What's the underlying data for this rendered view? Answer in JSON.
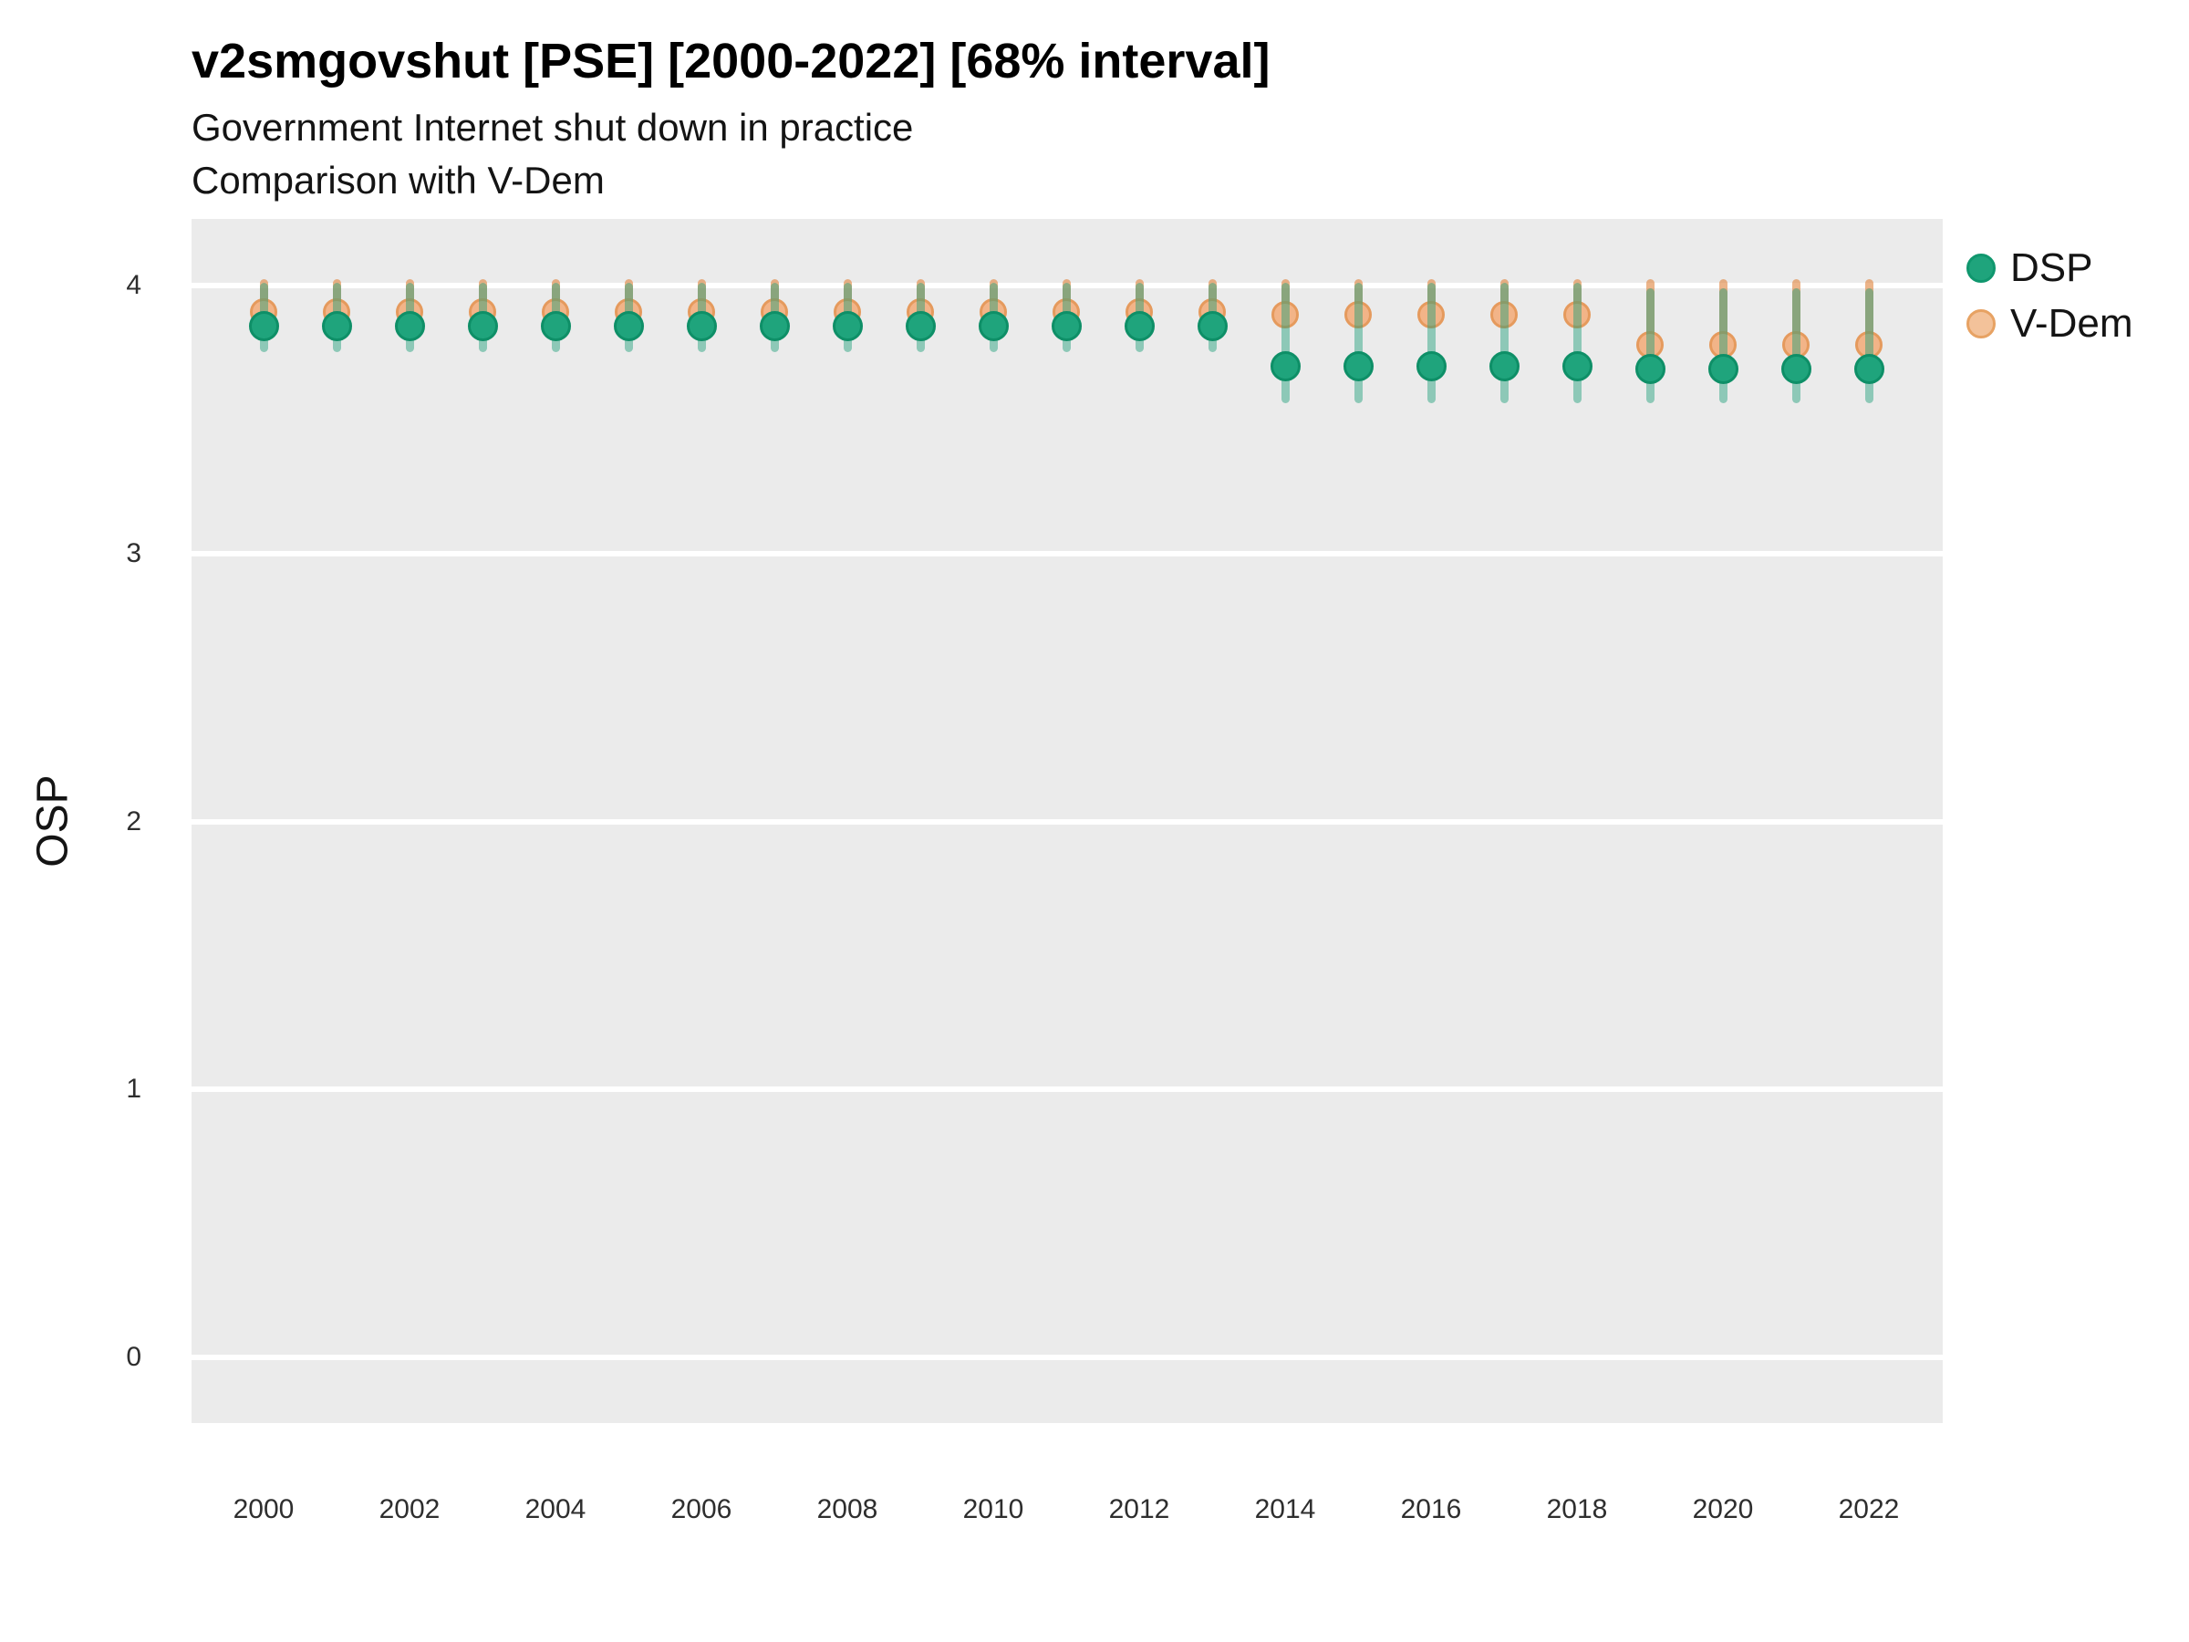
{
  "header": {
    "title": "v2smgovshut [PSE] [2000-2022] [68% interval]",
    "subtitle1": "Government Internet shut down in practice",
    "subtitle2": "Comparison with V-Dem"
  },
  "chart_data": {
    "type": "pointrange",
    "title": "v2smgovshut [PSE] [2000-2022] [68% interval]",
    "subtitle": "Government Internet shut down in practice",
    "note": "Comparison with V-Dem",
    "interval": "68% interval",
    "variable": "v2smgovshut",
    "country": "PSE",
    "xlabel": "",
    "ylabel": "OSP",
    "ylim": [
      -0.25,
      4.25
    ],
    "grid": "major-horizontal-white-on-gray",
    "legend_position": "right",
    "y_ticks": [
      4,
      3,
      2,
      1,
      0
    ],
    "x_ticks": [
      2000,
      2002,
      2004,
      2006,
      2008,
      2010,
      2012,
      2014,
      2016,
      2018,
      2020,
      2022
    ],
    "x": [
      2000,
      2001,
      2002,
      2003,
      2004,
      2005,
      2006,
      2007,
      2008,
      2009,
      2010,
      2011,
      2012,
      2013,
      2014,
      2015,
      2016,
      2017,
      2018,
      2019,
      2020,
      2021,
      2022
    ],
    "series": [
      {
        "name": "V-Dem",
        "values": [
          3.9,
          3.9,
          3.9,
          3.9,
          3.9,
          3.9,
          3.9,
          3.9,
          3.9,
          3.9,
          3.9,
          3.9,
          3.9,
          3.9,
          3.89,
          3.89,
          3.89,
          3.89,
          3.89,
          3.78,
          3.78,
          3.78,
          3.78
        ],
        "lower": [
          3.85,
          3.85,
          3.85,
          3.85,
          3.85,
          3.85,
          3.85,
          3.85,
          3.85,
          3.85,
          3.85,
          3.85,
          3.85,
          3.85,
          3.85,
          3.85,
          3.85,
          3.85,
          3.85,
          3.72,
          3.72,
          3.72,
          3.72
        ],
        "upper": [
          4.025,
          4.025,
          4.025,
          4.025,
          4.025,
          4.025,
          4.025,
          4.025,
          4.025,
          4.025,
          4.025,
          4.025,
          4.025,
          4.025,
          4.025,
          4.025,
          4.025,
          4.025,
          4.025,
          4.025,
          4.025,
          4.025,
          4.025
        ],
        "point_fill": "#F2B488",
        "point_stroke": "#E59A5D",
        "bar_color": "rgba(224,130,58,0.60)"
      },
      {
        "name": "DSP",
        "values": [
          3.85,
          3.85,
          3.85,
          3.85,
          3.85,
          3.85,
          3.85,
          3.85,
          3.85,
          3.85,
          3.85,
          3.85,
          3.85,
          3.85,
          3.7,
          3.7,
          3.7,
          3.7,
          3.7,
          3.69,
          3.69,
          3.69,
          3.69
        ],
        "lower": [
          3.75,
          3.75,
          3.75,
          3.75,
          3.75,
          3.75,
          3.75,
          3.75,
          3.75,
          3.75,
          3.75,
          3.75,
          3.75,
          3.75,
          3.56,
          3.56,
          3.56,
          3.56,
          3.56,
          3.56,
          3.56,
          3.56,
          3.56
        ],
        "upper": [
          4.01,
          4.01,
          4.01,
          4.01,
          4.01,
          4.01,
          4.01,
          4.01,
          4.01,
          4.01,
          4.01,
          4.01,
          4.01,
          4.01,
          4.01,
          4.01,
          4.01,
          4.01,
          4.01,
          3.99,
          3.99,
          3.99,
          3.99
        ],
        "point_fill": "#1FA47C",
        "point_stroke": "#0E8F67",
        "bar_color": "rgba(27,158,119,0.45)"
      }
    ],
    "legend": [
      {
        "label": "DSP",
        "fill": "#1FA47C",
        "stroke": "#10976E"
      },
      {
        "label": "V-Dem",
        "fill": "#F3C29A",
        "stroke": "#E7A263"
      }
    ],
    "colors": {
      "panel_background": "#EBEBEB",
      "gridline": "#FFFFFF",
      "dsp_green": "#1FA47C",
      "vdem_orange": "#E7A263"
    }
  }
}
